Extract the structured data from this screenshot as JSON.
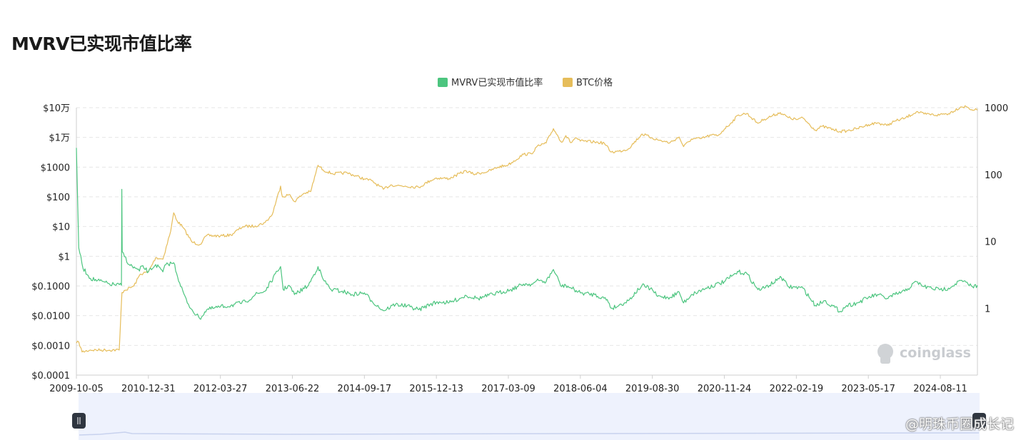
{
  "page": {
    "title": "MVRV已实现市值比率",
    "watermark": "coinglass",
    "footer_watermark": "@明珠币圈成长记"
  },
  "colors": {
    "mvrv": "#4cc57f",
    "btc": "#e6bd5a",
    "grid": "#e6e6e6",
    "slider_bg": "#eef2fd",
    "slider_border": "#c8d2ee",
    "handle": "#2f3640"
  },
  "chart_data": {
    "type": "line",
    "title": "MVRV已实现市值比率",
    "legend": {
      "position": "top-center",
      "items": [
        "MVRV已实现市值比率",
        "BTC价格"
      ]
    },
    "grid": true,
    "x_tick_labels": [
      "2009-10-05",
      "2010-12-31",
      "2012-03-27",
      "2013-06-22",
      "2014-09-17",
      "2015-12-13",
      "2017-03-09",
      "2018-06-04",
      "2019-08-30",
      "2020-11-24",
      "2022-02-19",
      "2023-05-17",
      "2024-08-11"
    ],
    "x_range": [
      "2009-10-05",
      "2025-04-01"
    ],
    "left_axis": {
      "scale": "log",
      "range": [
        0.0001,
        100000
      ],
      "tick_labels": [
        "$10万",
        "$1万",
        "$1000",
        "$100",
        "$10",
        "$1",
        "$0.1000",
        "$0.0100",
        "$0.0010",
        "$0.0001"
      ]
    },
    "right_axis": {
      "scale": "log",
      "range": [
        0.1,
        1000
      ],
      "tick_labels": [
        "1000",
        "100",
        "10",
        "1"
      ]
    },
    "series": [
      {
        "name": "BTC价格",
        "axis": "left",
        "x": [
          "2009-10-05",
          "2009-10-20",
          "2009-11-10",
          "2010-01-01",
          "2010-07-01",
          "2010-07-18",
          "2010-08-01",
          "2010-10-01",
          "2010-11-10",
          "2010-12-31",
          "2011-02-15",
          "2011-04-01",
          "2011-05-20",
          "2011-06-08",
          "2011-07-01",
          "2011-08-01",
          "2011-10-01",
          "2011-11-20",
          "2012-01-01",
          "2012-03-27",
          "2012-06-01",
          "2012-08-15",
          "2012-11-01",
          "2013-01-01",
          "2013-02-15",
          "2013-04-09",
          "2013-04-20",
          "2013-06-01",
          "2013-07-05",
          "2013-09-01",
          "2013-10-15",
          "2013-11-15",
          "2013-11-30",
          "2014-01-01",
          "2014-03-01",
          "2014-06-01",
          "2014-09-17",
          "2014-11-01",
          "2015-01-14",
          "2015-03-01",
          "2015-06-01",
          "2015-08-25",
          "2015-11-04",
          "2015-12-13",
          "2016-03-01",
          "2016-06-17",
          "2016-08-01",
          "2016-11-01",
          "2017-01-04",
          "2017-03-09",
          "2017-06-12",
          "2017-08-01",
          "2017-09-01",
          "2017-11-01",
          "2017-12-17",
          "2018-02-06",
          "2018-03-05",
          "2018-04-06",
          "2018-05-05",
          "2018-06-04",
          "2018-09-01",
          "2018-11-01",
          "2018-12-15",
          "2019-02-01",
          "2019-04-01",
          "2019-06-26",
          "2019-08-30",
          "2019-10-01",
          "2019-12-18",
          "2020-02-14",
          "2020-03-13",
          "2020-05-01",
          "2020-07-01",
          "2020-09-01",
          "2020-10-15",
          "2020-11-24",
          "2020-12-31",
          "2021-02-21",
          "2021-04-14",
          "2021-06-22",
          "2021-08-01",
          "2021-11-10",
          "2021-12-31",
          "2022-02-19",
          "2022-04-01",
          "2022-06-18",
          "2022-08-01",
          "2022-11-21",
          "2023-01-01",
          "2023-03-10",
          "2023-05-17",
          "2023-07-14",
          "2023-09-11",
          "2023-10-25",
          "2024-01-01",
          "2024-03-14",
          "2024-05-01",
          "2024-08-05",
          "2024-08-11",
          "2024-10-01",
          "2024-12-17",
          "2025-01-20",
          "2025-02-25",
          "2025-03-15",
          "2025-04-01"
        ],
        "values": [
          0.0012,
          0.0013,
          0.0006,
          0.0007,
          0.0007,
          0.06,
          0.07,
          0.1,
          0.25,
          0.3,
          0.9,
          0.8,
          7,
          29,
          15,
          10,
          3,
          2.5,
          5,
          4.8,
          5.2,
          10,
          10.5,
          13.5,
          25,
          230,
          100,
          120,
          70,
          130,
          150,
          600,
          1150,
          800,
          600,
          640,
          400,
          350,
          180,
          250,
          230,
          210,
          350,
          430,
          410,
          750,
          580,
          710,
          1000,
          1200,
          2700,
          2800,
          4700,
          6500,
          19700,
          6900,
          11500,
          6600,
          9800,
          7500,
          7000,
          6400,
          3200,
          3400,
          4100,
          13000,
          9600,
          8300,
          6600,
          10300,
          4900,
          8800,
          9100,
          11900,
          11500,
          19000,
          29000,
          57000,
          64000,
          30000,
          41000,
          68700,
          46000,
          40000,
          45000,
          17700,
          23500,
          15800,
          16500,
          20000,
          27000,
          31000,
          25000,
          34500,
          44000,
          73000,
          61000,
          56000,
          60000,
          63000,
          106000,
          109000,
          85000,
          84000,
          83000
        ]
      },
      {
        "name": "MVRV已实现市值比率",
        "axis": "right",
        "x": [
          "2009-10-05",
          "2009-10-20",
          "2009-11-15",
          "2010-01-01",
          "2010-02-15",
          "2010-05-01",
          "2010-07-15",
          "2010-07-17",
          "2010-07-20",
          "2010-09-01",
          "2010-11-05",
          "2010-11-20",
          "2010-12-31",
          "2011-02-15",
          "2011-04-01",
          "2011-04-20",
          "2011-06-08",
          "2011-07-15",
          "2011-09-01",
          "2011-10-01",
          "2011-11-18",
          "2012-01-01",
          "2012-03-27",
          "2012-06-01",
          "2012-09-01",
          "2012-11-01",
          "2013-01-01",
          "2013-04-09",
          "2013-04-25",
          "2013-06-01",
          "2013-07-05",
          "2013-10-01",
          "2013-11-30",
          "2014-01-01",
          "2014-02-20",
          "2014-05-01",
          "2014-07-01",
          "2014-09-17",
          "2014-11-01",
          "2015-01-14",
          "2015-04-01",
          "2015-07-01",
          "2015-08-25",
          "2015-11-04",
          "2016-01-01",
          "2016-03-01",
          "2016-06-17",
          "2016-09-01",
          "2017-01-04",
          "2017-03-25",
          "2017-06-12",
          "2017-08-01",
          "2017-09-15",
          "2017-11-01",
          "2017-12-17",
          "2018-02-06",
          "2018-03-05",
          "2018-06-04",
          "2018-09-01",
          "2018-11-20",
          "2018-12-15",
          "2019-02-01",
          "2019-04-01",
          "2019-06-26",
          "2019-08-30",
          "2019-10-01",
          "2019-12-18",
          "2020-02-14",
          "2020-03-13",
          "2020-05-01",
          "2020-08-01",
          "2020-11-24",
          "2021-01-08",
          "2021-02-21",
          "2021-04-14",
          "2021-06-22",
          "2021-08-01",
          "2021-10-20",
          "2021-11-10",
          "2022-01-01",
          "2022-04-01",
          "2022-06-18",
          "2022-08-15",
          "2022-11-21",
          "2023-01-01",
          "2023-03-10",
          "2023-05-17",
          "2023-07-14",
          "2023-09-11",
          "2023-11-01",
          "2024-01-01",
          "2024-03-14",
          "2024-05-01",
          "2024-08-05",
          "2024-08-11",
          "2024-10-01",
          "2024-12-17",
          "2025-02-01",
          "2025-03-01",
          "2025-04-01"
        ],
        "values": [
          250,
          8,
          4,
          2.8,
          2.6,
          2.3,
          2.2,
          60,
          7,
          4.5,
          3.6,
          4.3,
          3.5,
          4.5,
          3.5,
          4.5,
          4.8,
          2.4,
          1.2,
          0.95,
          0.7,
          0.95,
          1.05,
          1.1,
          1.25,
          1.6,
          1.8,
          4.2,
          1.9,
          2.2,
          1.6,
          2.2,
          4.2,
          2.7,
          1.9,
          1.8,
          1.6,
          1.7,
          1.3,
          0.92,
          1.15,
          1.05,
          0.95,
          1.15,
          1.25,
          1.2,
          1.55,
          1.4,
          1.7,
          1.9,
          2.3,
          2.3,
          2.6,
          2.5,
          3.8,
          2.1,
          2.2,
          1.7,
          1.6,
          1.35,
          1.0,
          1.1,
          1.3,
          2.2,
          1.9,
          1.5,
          1.45,
          1.75,
          1.2,
          1.6,
          2.0,
          2.5,
          3.0,
          3.5,
          3.3,
          1.9,
          2.0,
          2.6,
          3.0,
          2.1,
          2.0,
          1.1,
          1.3,
          0.9,
          1.1,
          1.2,
          1.45,
          1.6,
          1.4,
          1.6,
          1.8,
          2.5,
          2.1,
          1.9,
          1.9,
          2.0,
          2.6,
          2.3,
          2.1,
          2.2
        ]
      }
    ]
  }
}
